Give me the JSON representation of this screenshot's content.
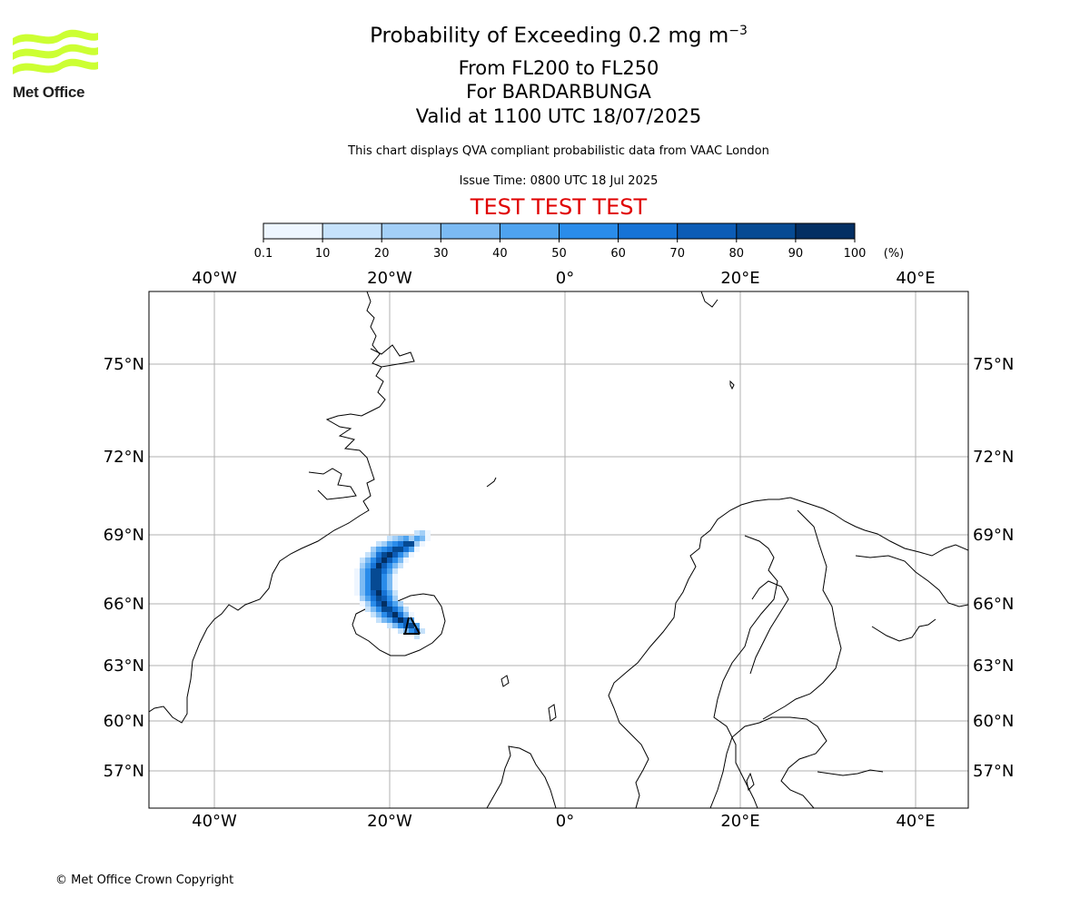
{
  "header": {
    "title_main": "Probability of Exceeding 0.2 mg m",
    "title_sup": "−3",
    "subtitle_levels": "From FL200 to FL250",
    "subtitle_volcano": "For BARDARBUNGA",
    "subtitle_valid": "Valid at 1100 UTC 18/07/2025",
    "disclaimer": "This chart displays QVA compliant probabilistic data from VAAC London",
    "issue_time": "Issue Time: 0800 UTC 18 Jul 2025",
    "test_banner": "TEST TEST TEST",
    "test_color": "#e00000"
  },
  "logo": {
    "text": "Met Office",
    "color": "#ccff33"
  },
  "colorbar": {
    "unit_label": "(%)",
    "tick_labels": [
      "0.1",
      "10",
      "20",
      "30",
      "40",
      "50",
      "60",
      "70",
      "80",
      "90",
      "100"
    ],
    "colors": [
      "#eef6ff",
      "#c6e2fb",
      "#a3cff7",
      "#7bbaf3",
      "#4ea3ef",
      "#2a8cea",
      "#1673d6",
      "#0c5cb6",
      "#064a93",
      "#032f63"
    ]
  },
  "map": {
    "lon_labels": [
      "40°W",
      "20°W",
      "0°",
      "20°E",
      "40°E"
    ],
    "lat_labels": [
      "75°N",
      "72°N",
      "69°N",
      "66°N",
      "63°N",
      "60°N",
      "57°N"
    ],
    "plume_max_probability_percent": 100
  },
  "footer": {
    "copyright": "© Met Office Crown Copyright"
  }
}
